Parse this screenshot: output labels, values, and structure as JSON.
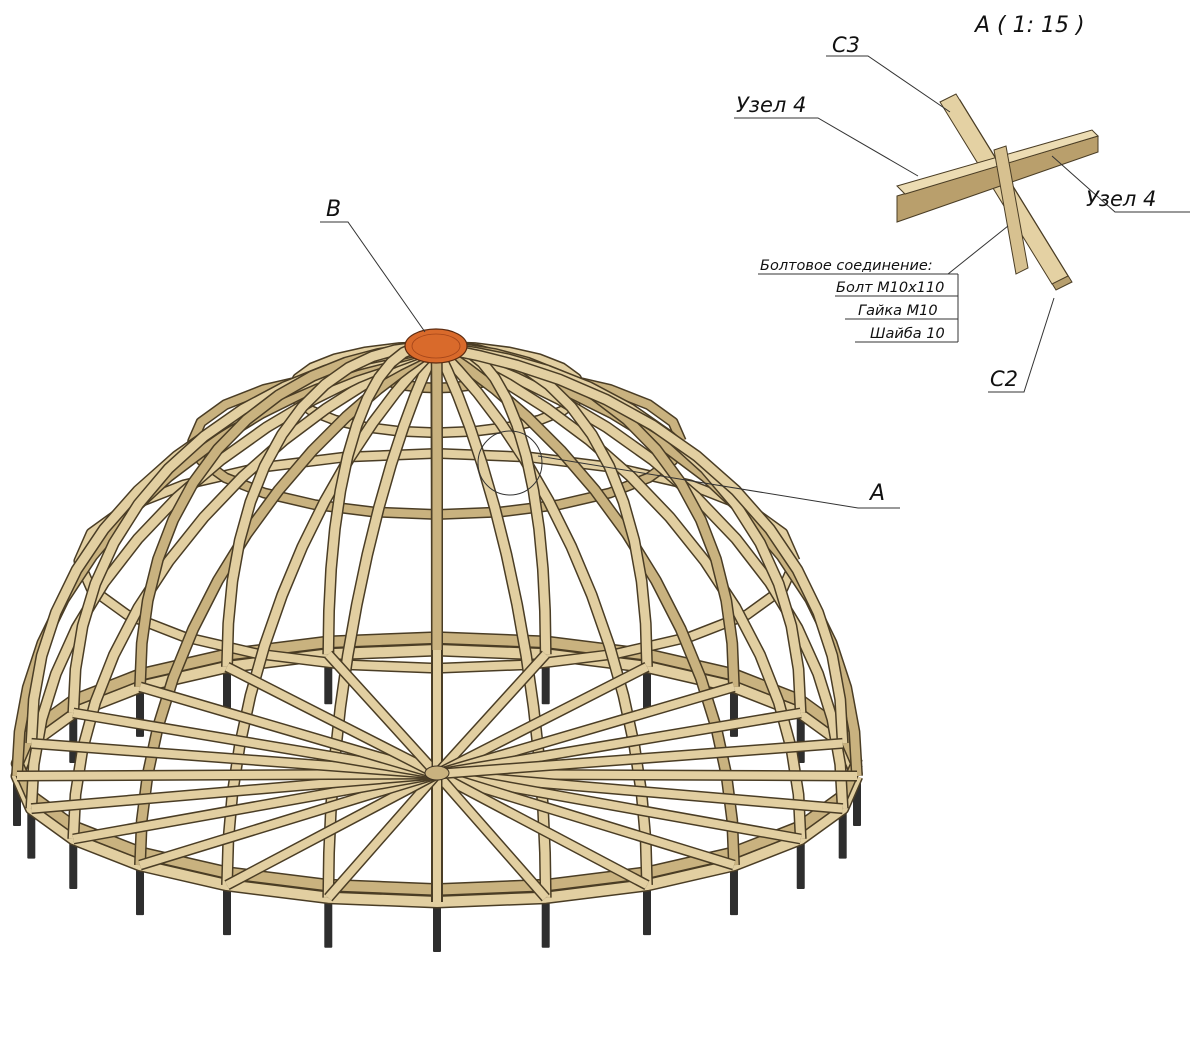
{
  "detail_view": {
    "title": "A ( 1: 15 )",
    "labels": {
      "c3": "C3",
      "c2": "C2",
      "node_left": "Узел 4",
      "node_right": "Узел 4"
    },
    "bolt_spec": {
      "heading": "Болтовое соединение:",
      "bolt": "Болт М10х110",
      "nut": "Гайка М10",
      "washer": "Шайба 10"
    }
  },
  "callouts": {
    "a": "A",
    "b": "B"
  },
  "colors": {
    "wood_light": "#e2cfa1",
    "wood_mid": "#c9b27f",
    "wood_dark": "#8f7a52",
    "outline": "#4a3d25",
    "hub": "#d96a2b",
    "post": "#2e2e2e"
  }
}
